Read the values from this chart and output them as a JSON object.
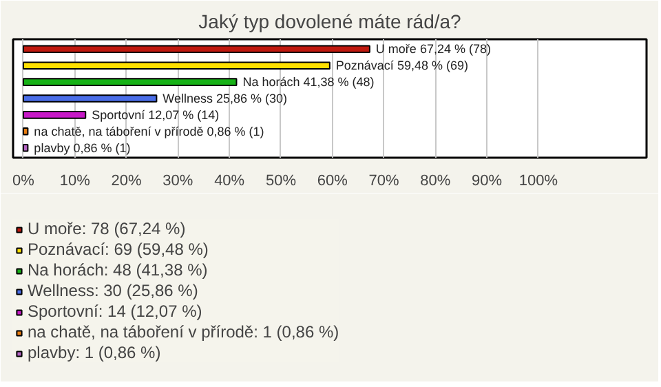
{
  "chart_data": {
    "type": "bar",
    "orientation": "horizontal",
    "title": "Jaký typ dovolené máte rád/a?",
    "categories": [
      null,
      null,
      null,
      null,
      null,
      null,
      null
    ],
    "xlim": [
      -2,
      121
    ],
    "xticks": [
      {
        "value": 0,
        "label": "0%"
      },
      {
        "value": 10,
        "label": "10%"
      },
      {
        "value": 20,
        "label": "20%"
      },
      {
        "value": 30,
        "label": "30%"
      },
      {
        "value": 40,
        "label": "40%"
      },
      {
        "value": 50,
        "label": "50%"
      },
      {
        "value": 60,
        "label": "60%"
      },
      {
        "value": 70,
        "label": "70%"
      },
      {
        "value": 80,
        "label": "80%"
      },
      {
        "value": 90,
        "label": "90%"
      },
      {
        "value": 100,
        "label": "100%"
      }
    ],
    "grid": "x",
    "legend": "bottom",
    "series": [
      {
        "name": "U moře: 78 (67,24 %)",
        "color": "#c0190f",
        "values": [
          67.24,
          null,
          null,
          null,
          null,
          null,
          null
        ],
        "value_labels": [
          "U moře 67,24 % (78)",
          null,
          null,
          null,
          null,
          null,
          null
        ]
      },
      {
        "name": "Poznávací: 69 (59,48 %)",
        "color": "#ffe000",
        "values": [
          null,
          59.48,
          null,
          null,
          null,
          null,
          null
        ],
        "value_labels": [
          null,
          "Poznávací 59,48 % (69)",
          null,
          null,
          null,
          null,
          null
        ]
      },
      {
        "name": "Na horách: 48 (41,38 %)",
        "color": "#17b217",
        "values": [
          null,
          null,
          41.38,
          null,
          null,
          null,
          null
        ],
        "value_labels": [
          null,
          null,
          "Na horách 41,38 % (48)",
          null,
          null,
          null,
          null
        ]
      },
      {
        "name": "Wellness: 30 (25,86 %)",
        "color": "#4a6ee8",
        "values": [
          null,
          null,
          null,
          25.86,
          null,
          null,
          null
        ],
        "value_labels": [
          null,
          null,
          null,
          "Wellness 25,86 % (30)",
          null,
          null,
          null
        ]
      },
      {
        "name": "Sportovní: 14 (12,07 %)",
        "color": "#c719c7",
        "values": [
          null,
          null,
          null,
          null,
          12.07,
          null,
          null
        ],
        "value_labels": [
          null,
          null,
          null,
          null,
          "Sportovní 12,07 % (14)",
          null,
          null
        ]
      },
      {
        "name": "na chatě, na táboření v přírodě: 1 (0,86 %)",
        "color": "#e87d10",
        "values": [
          null,
          null,
          null,
          null,
          null,
          0.86,
          null
        ],
        "value_labels": [
          null,
          null,
          null,
          null,
          null,
          "na chatě, na táboření v přírodě 0,86 % (1)",
          null
        ]
      },
      {
        "name": "plavby: 1 (0,86 %)",
        "color": "#b565c4",
        "values": [
          null,
          null,
          null,
          null,
          null,
          null,
          0.86
        ],
        "value_labels": [
          null,
          null,
          null,
          null,
          null,
          null,
          "plavby 0,86 % (1)"
        ]
      }
    ]
  }
}
